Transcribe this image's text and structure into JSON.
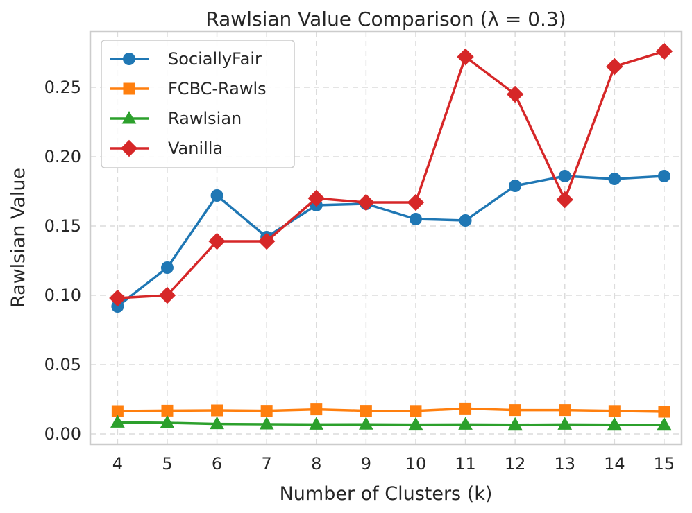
{
  "chart_data": {
    "type": "line",
    "title": "Rawlsian Value Comparison (λ = 0.3)",
    "xlabel": "Number of Clusters (k)",
    "ylabel": "Rawlsian Value",
    "x": [
      4,
      5,
      6,
      7,
      8,
      9,
      10,
      11,
      12,
      13,
      14,
      15
    ],
    "x_tick_labels": [
      "4",
      "5",
      "6",
      "7",
      "8",
      "9",
      "10",
      "11",
      "12",
      "13",
      "14",
      "15"
    ],
    "y_ticks": [
      0.0,
      0.05,
      0.1,
      0.15,
      0.2,
      0.25
    ],
    "y_tick_labels": [
      "0.00",
      "0.05",
      "0.10",
      "0.15",
      "0.20",
      "0.25"
    ],
    "xlim": [
      3.45,
      15.35
    ],
    "ylim": [
      -0.0075,
      0.2905
    ],
    "grid": true,
    "legend_position": "top-left",
    "series": [
      {
        "name": "SociallyFair",
        "color": "#1f77b4",
        "marker": "circle",
        "values": [
          0.092,
          0.12,
          0.172,
          0.142,
          0.165,
          0.166,
          0.155,
          0.154,
          0.179,
          0.186,
          0.184,
          0.186
        ]
      },
      {
        "name": "FCBC-Rawls",
        "color": "#ff7f0e",
        "marker": "square",
        "values": [
          0.0165,
          0.0168,
          0.017,
          0.0167,
          0.0177,
          0.0167,
          0.0166,
          0.0183,
          0.0172,
          0.0172,
          0.0166,
          0.016
        ]
      },
      {
        "name": "Rawlsian",
        "color": "#2ca02c",
        "marker": "triangle",
        "values": [
          0.0083,
          0.008,
          0.0072,
          0.007,
          0.0068,
          0.0069,
          0.0067,
          0.0068,
          0.0066,
          0.0068,
          0.0066,
          0.0066
        ]
      },
      {
        "name": "Vanilla",
        "color": "#d62728",
        "marker": "diamond",
        "values": [
          0.098,
          0.1,
          0.139,
          0.139,
          0.17,
          0.167,
          0.167,
          0.272,
          0.245,
          0.169,
          0.265,
          0.276
        ]
      }
    ]
  }
}
